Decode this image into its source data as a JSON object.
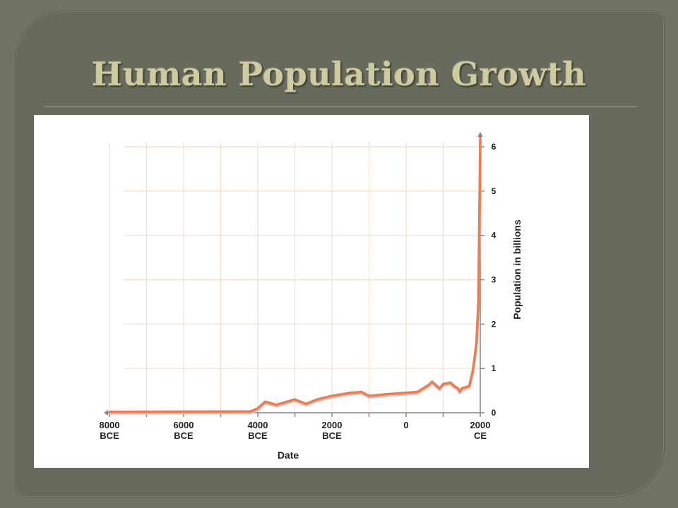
{
  "slide": {
    "title": "Human Population Growth"
  },
  "chart_data": {
    "type": "line",
    "title": "",
    "xlabel": "Date",
    "ylabel": "Population in billions",
    "xlim": [
      -8000,
      2000
    ],
    "ylim": [
      0,
      6
    ],
    "grid": true,
    "x_tick_labels": [
      {
        "value": -8000,
        "line1": "8000",
        "line2": "BCE"
      },
      {
        "value": -6000,
        "line1": "6000",
        "line2": "BCE"
      },
      {
        "value": -4000,
        "line1": "4000",
        "line2": "BCE"
      },
      {
        "value": -2000,
        "line1": "2000",
        "line2": "BCE"
      },
      {
        "value": 0,
        "line1": "0",
        "line2": ""
      },
      {
        "value": 2000,
        "line1": "2000",
        "line2": "CE"
      }
    ],
    "y_tick_labels": [
      "0",
      "1",
      "2",
      "3",
      "4",
      "5",
      "6"
    ],
    "series": [
      {
        "color": "#f07b4f",
        "x": [
          -8000,
          -4200,
          -4000,
          -3800,
          -3500,
          -3000,
          -2700,
          -2400,
          -2000,
          -1500,
          -1200,
          -1000,
          -500,
          0,
          300,
          600,
          700,
          900,
          1000,
          1200,
          1300,
          1400,
          1450,
          1500,
          1700,
          1800,
          1850,
          1900,
          1950,
          1990,
          2000
        ],
        "y": [
          0.02,
          0.03,
          0.1,
          0.25,
          0.18,
          0.3,
          0.2,
          0.3,
          0.38,
          0.45,
          0.47,
          0.38,
          0.42,
          0.45,
          0.47,
          0.62,
          0.7,
          0.55,
          0.65,
          0.68,
          0.6,
          0.55,
          0.48,
          0.55,
          0.6,
          0.95,
          1.25,
          1.6,
          2.5,
          5.3,
          6.2
        ]
      }
    ]
  }
}
